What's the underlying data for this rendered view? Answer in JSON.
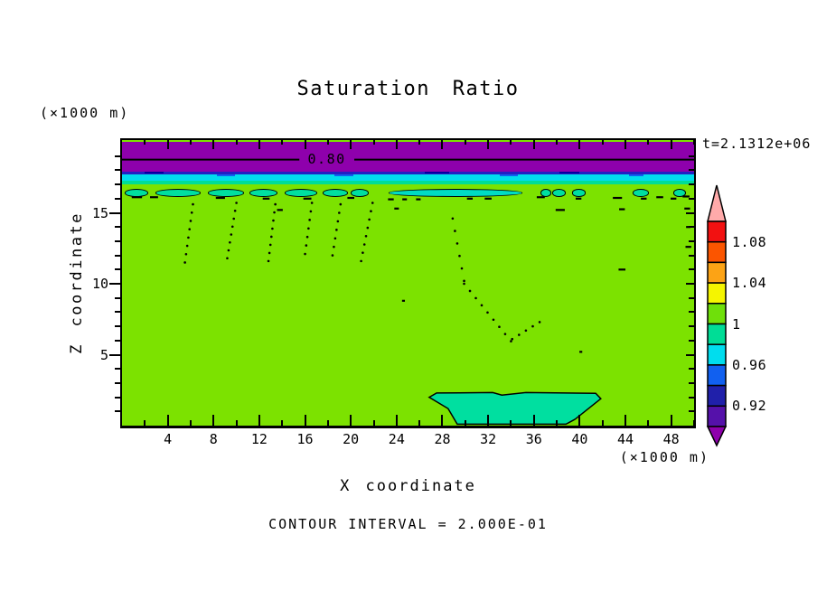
{
  "title": "Saturation Ratio",
  "time_label": "t=2.1312e+06",
  "contour_note": "CONTOUR INTERVAL = 2.000E-01",
  "x_axis": {
    "label": "X coordinate",
    "unit": "(×1000 m)",
    "range": [
      0,
      50
    ],
    "major_ticks": [
      4,
      8,
      12,
      16,
      20,
      24,
      28,
      32,
      36,
      40,
      44,
      48
    ],
    "minor_ticks": [
      2,
      6,
      10,
      14,
      18,
      22,
      26,
      30,
      34,
      38,
      42,
      46,
      50
    ]
  },
  "y_axis": {
    "label": "Z coordinate",
    "unit": "(×1000 m)",
    "range": [
      0,
      20
    ],
    "major_ticks": [
      5,
      10,
      15
    ],
    "minor_ticks": [
      1,
      2,
      3,
      4,
      6,
      7,
      8,
      9,
      11,
      12,
      13,
      14,
      16,
      17,
      18,
      19
    ]
  },
  "colorbar": {
    "labels": [
      "1.08",
      "1.04",
      "1",
      "0.96",
      "0.92"
    ],
    "label_boundaries": [
      1,
      3,
      5,
      7,
      9
    ],
    "segment_colors": [
      "#F21111",
      "#FB5500",
      "#FCA315",
      "#F5F500",
      "#6FE00A",
      "#00DD96",
      "#00DDEE",
      "#1160F0",
      "#2020AA",
      "#5511AA"
    ],
    "arrow_top_color": "#FFAAAA",
    "arrow_bottom_color": "#8E00AC"
  },
  "chart_data": {
    "type": "heatmap",
    "title": "Saturation Ratio",
    "xlabel": "X coordinate",
    "ylabel": "Z coordinate",
    "xlim": [
      0,
      50
    ],
    "zlim": [
      0,
      20
    ],
    "time_stamp": "t=2.1312e+06",
    "contour_interval": "2.000E-01",
    "colorbar_tick_values": [
      0.92,
      0.96,
      1,
      1.04,
      1.08
    ],
    "value_step_per_color": 0.02,
    "contour_line": {
      "z": 18.75,
      "label": "0.80",
      "gap_x": [
        15.5,
        20.3
      ]
    },
    "bands": [
      {
        "z0": 17.9,
        "z1": 20.0,
        "color": "#8E00AC",
        "value": "<0.9"
      },
      {
        "z0": 17.68,
        "z1": 17.9,
        "color": "#2121C4",
        "value": "0.92-0.94"
      },
      {
        "z0": 17.25,
        "z1": 17.68,
        "color": "#00DDEE",
        "value": "0.96-0.98"
      },
      {
        "z0": 17.03,
        "z1": 17.25,
        "color": "#00DD96",
        "value": "0.98-1.00"
      },
      {
        "z0": 0.0,
        "z1": 17.03,
        "color": "#7CE200",
        "value": "1.00-1.02"
      }
    ],
    "patches": [
      {
        "x0": 2.0,
        "x1": 3.6,
        "z0": 17.76,
        "z1": 17.9,
        "color": "#0000A0"
      },
      {
        "x0": 26.5,
        "x1": 28.6,
        "z0": 17.76,
        "z1": 17.9,
        "color": "#0000A0"
      },
      {
        "x0": 38.2,
        "x1": 40.0,
        "z0": 17.76,
        "z1": 17.9,
        "color": "#0000A0"
      },
      {
        "x0": 8.3,
        "x1": 9.9,
        "z0": 17.56,
        "z1": 17.68,
        "color": "#1160F0"
      },
      {
        "x0": 18.6,
        "x1": 20.2,
        "z0": 17.56,
        "z1": 17.68,
        "color": "#1160F0"
      },
      {
        "x0": 33.0,
        "x1": 34.6,
        "z0": 17.56,
        "z1": 17.68,
        "color": "#1160F0"
      },
      {
        "x0": 44.3,
        "x1": 45.6,
        "z0": 17.56,
        "z1": 17.68,
        "color": "#1160F0"
      }
    ],
    "lenses": [
      {
        "x0": 0.2,
        "x1": 2.1
      },
      {
        "x0": 2.9,
        "x1": 6.7
      },
      {
        "x0": 7.5,
        "x1": 10.5
      },
      {
        "x0": 11.1,
        "x1": 13.4
      },
      {
        "x0": 14.2,
        "x1": 16.9
      },
      {
        "x0": 17.5,
        "x1": 19.6
      },
      {
        "x0": 20.0,
        "x1": 21.4
      },
      {
        "x0": 23.3,
        "x1": 34.8,
        "color": "#00DCC4"
      },
      {
        "x0": 36.6,
        "x1": 37.4
      },
      {
        "x0": 37.6,
        "x1": 38.6
      },
      {
        "x0": 39.3,
        "x1": 40.4
      },
      {
        "x0": 44.6,
        "x1": 45.9
      },
      {
        "x0": 48.2,
        "x1": 49.1
      }
    ],
    "lens_z": {
      "zc": 16.45,
      "h": 0.42,
      "default_color": "#00DFA0"
    },
    "dashes": [
      [
        1.3,
        16.1,
        0.9
      ],
      [
        2.8,
        16.1,
        0.7
      ],
      [
        8.6,
        16.05,
        0.8
      ],
      [
        12.6,
        16.0,
        0.6
      ],
      [
        16.2,
        16.0,
        0.7
      ],
      [
        20.0,
        16.05,
        0.6
      ],
      [
        23.5,
        15.95,
        0.5
      ],
      [
        24.7,
        15.95,
        0.4
      ],
      [
        25.9,
        15.95,
        0.4
      ],
      [
        30.4,
        16.0,
        0.5
      ],
      [
        32.0,
        16.0,
        0.6
      ],
      [
        36.6,
        16.1,
        0.7
      ],
      [
        39.9,
        16.0,
        0.5
      ],
      [
        43.3,
        16.05,
        0.8
      ],
      [
        45.6,
        16.0,
        0.5
      ],
      [
        47.0,
        16.1,
        0.6
      ],
      [
        48.2,
        16.0,
        0.5
      ],
      [
        49.3,
        16.15,
        0.6
      ],
      [
        13.8,
        15.2,
        0.5
      ],
      [
        24.0,
        15.3,
        0.4
      ],
      [
        38.3,
        15.2,
        0.8
      ],
      [
        43.7,
        15.25,
        0.5
      ],
      [
        49.4,
        15.3,
        0.5
      ],
      [
        43.7,
        11.0,
        0.6
      ],
      [
        49.5,
        12.6,
        0.5
      ],
      [
        49.5,
        14.0,
        0.4
      ],
      [
        40.1,
        5.2,
        0.25
      ],
      [
        24.6,
        8.8,
        0.25
      ],
      [
        30.8,
        1.2,
        0.25
      ]
    ],
    "dotted_trails": [
      [
        6.2,
        15.6,
        5.5,
        11.5,
        8
      ],
      [
        10.0,
        15.7,
        9.2,
        11.8,
        8
      ],
      [
        13.4,
        15.6,
        12.8,
        11.6,
        8
      ],
      [
        16.6,
        15.7,
        16.0,
        12.1,
        7
      ],
      [
        19.1,
        15.6,
        18.4,
        12.0,
        7
      ],
      [
        21.9,
        15.7,
        20.9,
        11.6,
        8
      ],
      [
        28.9,
        14.6,
        29.9,
        10.2,
        6
      ],
      [
        29.9,
        10.0,
        34.0,
        5.95,
        9
      ],
      [
        34.1,
        6.1,
        36.5,
        7.3,
        5
      ]
    ],
    "bottom_blob": {
      "color": "#00DFA0",
      "points": [
        [
          26.85,
          2.0
        ],
        [
          27.5,
          2.3
        ],
        [
          32.4,
          2.33
        ],
        [
          33.2,
          2.15
        ],
        [
          35.3,
          2.33
        ],
        [
          41.4,
          2.28
        ],
        [
          41.85,
          1.9
        ],
        [
          39.6,
          0.45
        ],
        [
          38.8,
          0.1
        ],
        [
          29.3,
          0.1
        ],
        [
          28.5,
          1.2
        ]
      ]
    }
  }
}
